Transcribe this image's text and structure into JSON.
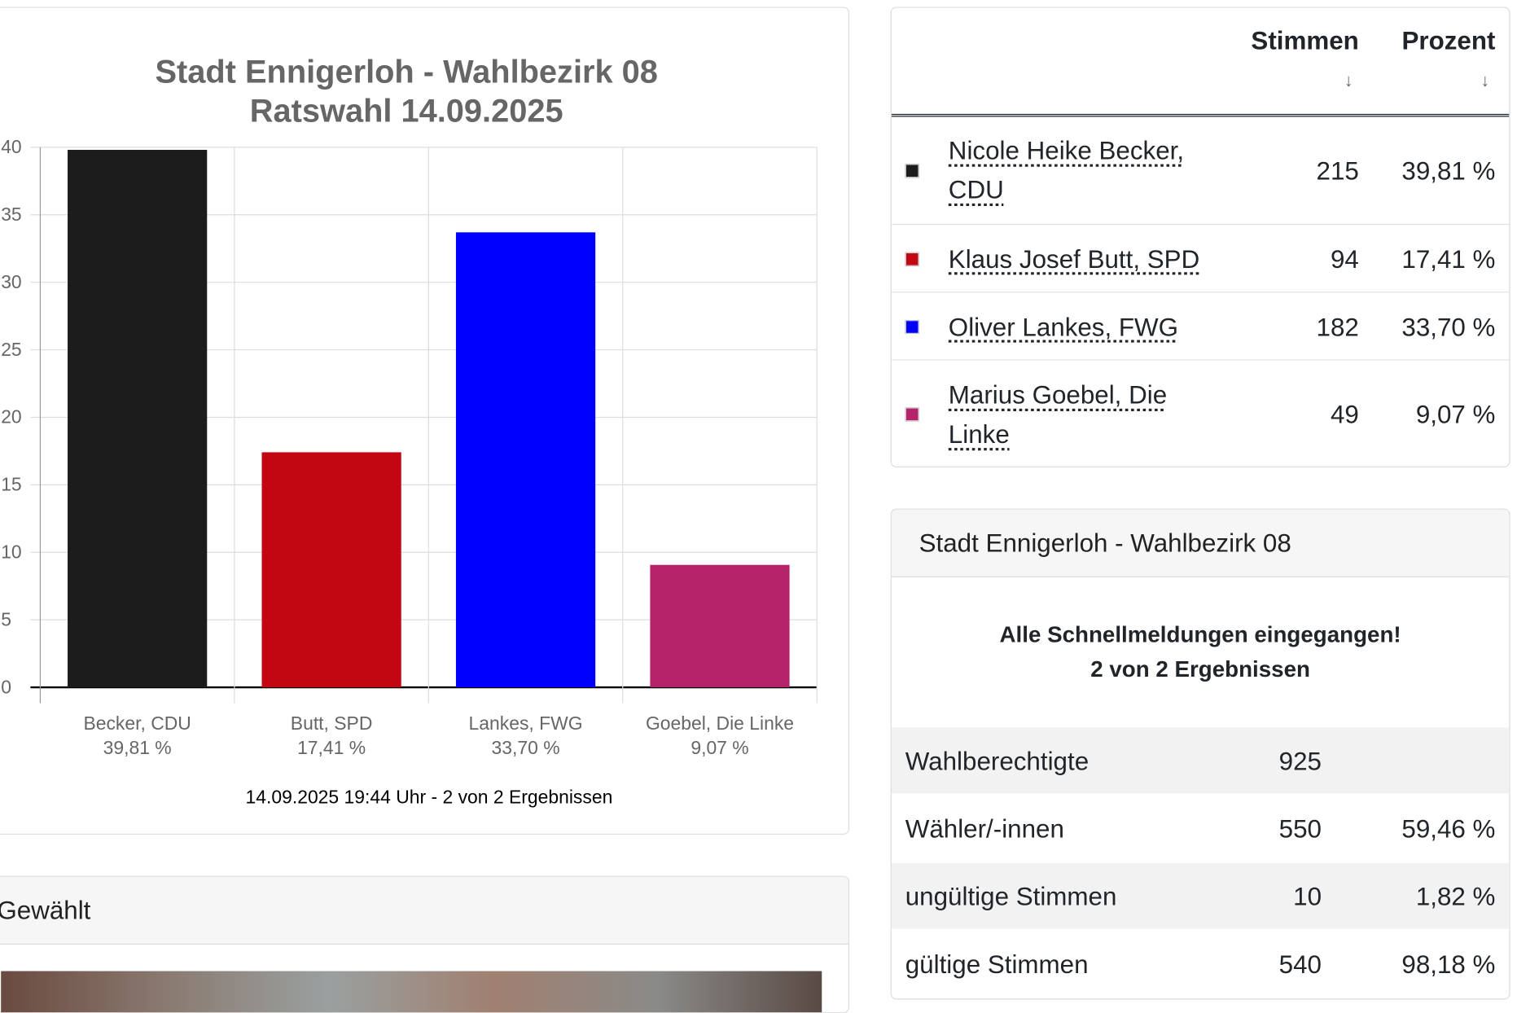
{
  "chart_data": {
    "type": "bar",
    "title": "Stadt Ennigerloh - Wahlbezirk 08",
    "subtitle": "Ratswahl 14.09.2025",
    "categories": [
      "Becker, CDU",
      "Butt, SPD",
      "Lankes, FWG",
      "Goebel, Die Linke"
    ],
    "category_sublabels": [
      "39,81 %",
      "17,41 %",
      "33,70 %",
      "9,07 %"
    ],
    "values": [
      39.81,
      17.41,
      33.7,
      9.07
    ],
    "colors": [
      "#1c1c1c",
      "#c20612",
      "#0000ff",
      "#b5236b"
    ],
    "ylim": [
      0,
      40
    ],
    "yticks": [
      "0",
      "5",
      "10",
      "15",
      "20",
      "25",
      "30",
      "35",
      "40"
    ],
    "grid": true,
    "footer": "14.09.2025 19:44 Uhr - 2 von 2 Ergebnissen"
  },
  "results": {
    "headers": {
      "votes": "Stimmen",
      "percent": "Prozent",
      "sort_arrow": "↓"
    },
    "rows": [
      {
        "name": "Nicole Heike Becker, CDU",
        "votes": "215",
        "percent": "39,81 %",
        "color": "#1c1c1c"
      },
      {
        "name": "Klaus Josef Butt, SPD",
        "votes": "94",
        "percent": "17,41 %",
        "color": "#c20612"
      },
      {
        "name": "Oliver Lankes, FWG",
        "votes": "182",
        "percent": "33,70 %",
        "color": "#0000ff"
      },
      {
        "name": "Marius Goebel, Die Linke",
        "votes": "49",
        "percent": "9,07 %",
        "color": "#b5236b"
      }
    ]
  },
  "info": {
    "title": "Stadt Ennigerloh - Wahlbezirk 08",
    "message1": "Alle Schnellmeldungen eingegangen!",
    "message2": "2 von 2 Ergebnissen",
    "stats": [
      {
        "label": "Wahlberechtigte",
        "value": "925",
        "percent": ""
      },
      {
        "label": "Wähler/-innen",
        "value": "550",
        "percent": "59,46 %"
      },
      {
        "label": "ungültige Stimmen",
        "value": "10",
        "percent": "1,82 %"
      },
      {
        "label": "gültige Stimmen",
        "value": "540",
        "percent": "98,18 %"
      }
    ]
  },
  "elected": {
    "title": "Gewählt"
  }
}
